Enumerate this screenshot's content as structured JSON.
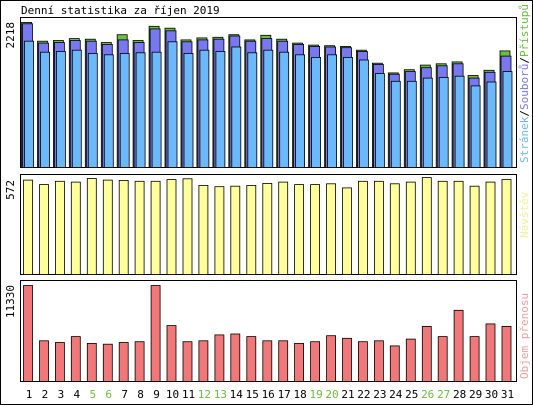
{
  "title": "Denní statistika za říjen 2019",
  "chart_data": [
    {
      "type": "bar",
      "panel": "hits",
      "y_tick_label": "2218",
      "ylim": [
        0,
        2300
      ],
      "categories": [
        "1",
        "2",
        "3",
        "4",
        "5",
        "6",
        "7",
        "8",
        "9",
        "10",
        "11",
        "12",
        "13",
        "14",
        "15",
        "16",
        "17",
        "18",
        "19",
        "20",
        "21",
        "22",
        "23",
        "24",
        "25",
        "26",
        "27",
        "28",
        "29",
        "30",
        "31"
      ],
      "weekend_days": [
        "5",
        "6",
        "12",
        "13",
        "19",
        "20",
        "26",
        "27"
      ],
      "legend": {
        "parts": [
          {
            "text": "Stránek",
            "color": "#6cb8f8"
          },
          {
            "text": "/",
            "color": "#000000"
          },
          {
            "text": "Souborů",
            "color": "#7878f0"
          },
          {
            "text": "/",
            "color": "#000000"
          },
          {
            "text": "Přístupů",
            "color": "#6cbd3e"
          }
        ]
      },
      "series": [
        {
          "name": "Přístupů",
          "color": "#6cbd3e",
          "values": [
            2240,
            1950,
            1960,
            1990,
            1980,
            1930,
            2050,
            1960,
            2180,
            2150,
            1970,
            2000,
            2010,
            2050,
            1970,
            2040,
            1980,
            1920,
            1890,
            1880,
            1870,
            1810,
            1610,
            1460,
            1510,
            1580,
            1600,
            1630,
            1420,
            1500,
            1800
          ]
        },
        {
          "name": "Souborů",
          "color": "#7878f0",
          "values": [
            2218,
            1920,
            1930,
            1960,
            1950,
            1900,
            1970,
            1930,
            2140,
            2110,
            1940,
            1970,
            1980,
            2030,
            1950,
            1990,
            1950,
            1900,
            1870,
            1860,
            1850,
            1790,
            1590,
            1440,
            1480,
            1540,
            1570,
            1600,
            1380,
            1470,
            1720
          ]
        },
        {
          "name": "Stránek",
          "color": "#6cb8f8",
          "values": [
            1950,
            1780,
            1790,
            1810,
            1760,
            1740,
            1760,
            1770,
            1780,
            1940,
            1760,
            1810,
            1790,
            1860,
            1770,
            1810,
            1780,
            1740,
            1700,
            1740,
            1700,
            1660,
            1450,
            1330,
            1330,
            1380,
            1390,
            1410,
            1260,
            1320,
            1480
          ]
        }
      ]
    },
    {
      "type": "bar",
      "panel": "visits",
      "y_tick_label": "572",
      "ylim": [
        0,
        600
      ],
      "categories": [
        "1",
        "2",
        "3",
        "4",
        "5",
        "6",
        "7",
        "8",
        "9",
        "10",
        "11",
        "12",
        "13",
        "14",
        "15",
        "16",
        "17",
        "18",
        "19",
        "20",
        "21",
        "22",
        "23",
        "24",
        "25",
        "26",
        "27",
        "28",
        "29",
        "30",
        "31"
      ],
      "legend": {
        "parts": [
          {
            "text": "Návštěv",
            "color": "#f0f0a0"
          }
        ]
      },
      "series": [
        {
          "name": "Návštěv",
          "color": "#ffff9c",
          "values": [
            572,
            545,
            565,
            560,
            582,
            572,
            570,
            565,
            565,
            575,
            580,
            540,
            532,
            535,
            540,
            552,
            560,
            545,
            545,
            550,
            525,
            565,
            565,
            550,
            560,
            587,
            565,
            565,
            535,
            560,
            575
          ]
        }
      ]
    },
    {
      "type": "bar",
      "panel": "transfer",
      "y_tick_label": "11330",
      "ylim": [
        0,
        11800
      ],
      "categories": [
        "1",
        "2",
        "3",
        "4",
        "5",
        "6",
        "7",
        "8",
        "9",
        "10",
        "11",
        "12",
        "13",
        "14",
        "15",
        "16",
        "17",
        "18",
        "19",
        "20",
        "21",
        "22",
        "23",
        "24",
        "25",
        "26",
        "27",
        "28",
        "29",
        "30",
        "31"
      ],
      "legend": {
        "parts": [
          {
            "text": "Objem přenosu",
            "color": "#f0a0a0"
          }
        ]
      },
      "series": [
        {
          "name": "Objem přenosu",
          "color": "#f07878",
          "values": [
            11330,
            4800,
            4600,
            5300,
            4500,
            4400,
            4600,
            4700,
            11330,
            6600,
            4700,
            4800,
            5500,
            5600,
            5300,
            4800,
            4800,
            4500,
            4700,
            5400,
            5100,
            4700,
            4800,
            4200,
            5000,
            6500,
            5300,
            8400,
            5300,
            6800,
            6500
          ]
        }
      ]
    }
  ]
}
